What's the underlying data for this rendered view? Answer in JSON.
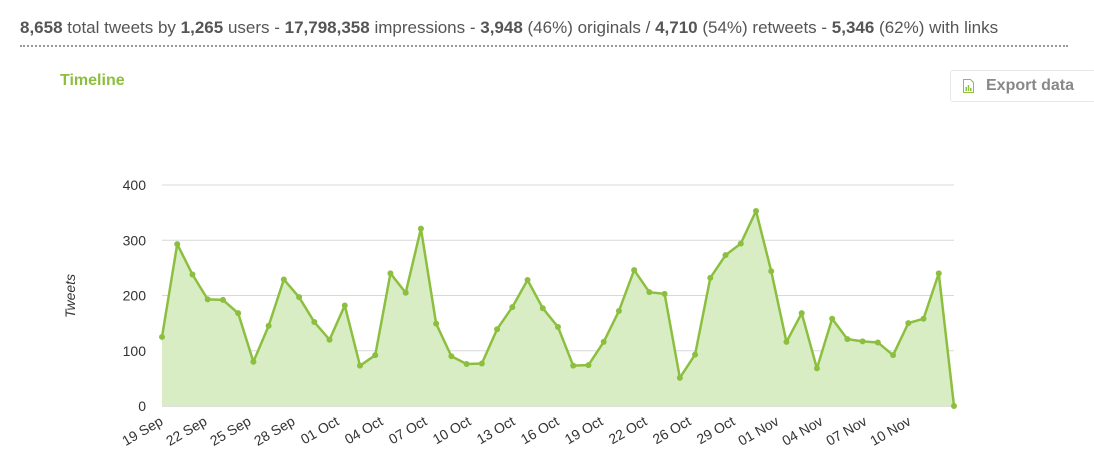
{
  "summary": {
    "total_tweets": "8,658",
    "t1": " total tweets by ",
    "users": "1,265",
    "t2": " users - ",
    "impressions": "17,798,358",
    "t3": " impressions - ",
    "originals": "3,948",
    "t4": " (46%) originals / ",
    "retweets": "4,710",
    "t5": " (54%) retweets - ",
    "with_links": "5,346",
    "t6": " (62%) with links"
  },
  "timeline_title": "Timeline",
  "export_label": "Export data",
  "icons": {
    "export": "spreadsheet-file-icon"
  },
  "colors": {
    "accent": "#8cbf3f",
    "fill": "#d9edc4",
    "grid": "#d8d8d8"
  },
  "chart_data": {
    "type": "area",
    "ylabel": "Tweets",
    "ylim": [
      0,
      400
    ],
    "yticks": [
      0,
      100,
      200,
      300,
      400
    ],
    "grid": true,
    "xtick_labels": [
      "19 Sep",
      "22 Sep",
      "25 Sep",
      "28 Sep",
      "01 Oct",
      "04 Oct",
      "07 Oct",
      "10 Oct",
      "13 Oct",
      "16 Oct",
      "19 Oct",
      "22 Oct",
      "26 Oct",
      "29 Oct",
      "01 Nov",
      "04 Nov",
      "07 Nov",
      "10 Nov"
    ],
    "values": [
      125,
      293,
      238,
      193,
      192,
      168,
      80,
      145,
      229,
      197,
      152,
      120,
      182,
      73,
      92,
      240,
      205,
      321,
      149,
      90,
      76,
      77,
      139,
      179,
      228,
      177,
      143,
      73,
      74,
      116,
      172,
      246,
      206,
      203,
      51,
      93,
      232,
      273,
      294,
      353,
      244,
      116,
      168,
      68,
      158,
      121,
      117,
      115,
      92,
      150,
      158,
      240,
      0
    ]
  }
}
